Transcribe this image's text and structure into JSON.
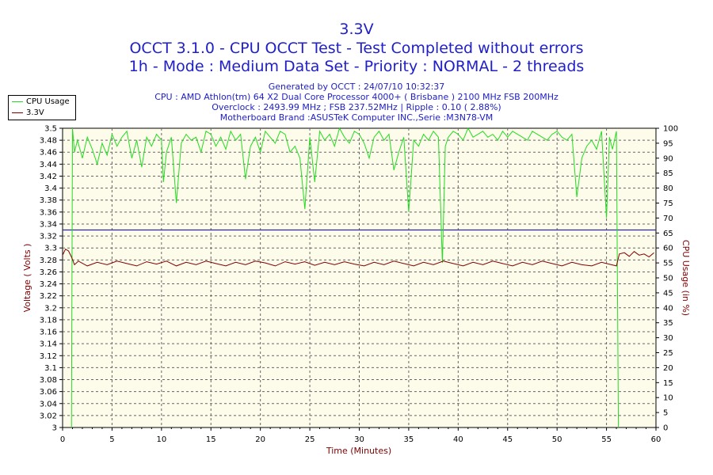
{
  "header": {
    "title": "3.3V",
    "subtitle1": "OCCT 3.1.0 - CPU OCCT Test - Test Completed without errors",
    "subtitle2": "1h - Mode : Medium Data Set - Priority : NORMAL - 2 threads",
    "info": [
      "Generated by OCCT : 24/07/10 10:32:37",
      "CPU : AMD Athlon(tm) 64 X2 Dual Core Processor 4000+ ( Brisbane ) 2100 MHz FSB 200MHz",
      "Overclock : 2493.99 MHz ; FSB 237.52MHz | Ripple : 0.10 ( 2.88%)",
      "Motherboard Brand :ASUSTeK Computer INC.,Serie :M3N78-VM"
    ]
  },
  "colors": {
    "cpu": "#22dd22",
    "voltage": "#800000",
    "reference": "#2a2aa0",
    "plot_bg": "#fdfbe9",
    "title": "#2020c8"
  },
  "chart_data": {
    "type": "line",
    "xlabel": "Time (Minutes)",
    "ylabel_left": "Voltage ( Volts )",
    "ylabel_right": "CPU Usage (in %)",
    "xlim": [
      0,
      60
    ],
    "ylim_left": [
      3.0,
      3.5
    ],
    "ylim_right": [
      0,
      100
    ],
    "x_ticks": [
      "0",
      "5",
      "10",
      "15",
      "20",
      "25",
      "30",
      "35",
      "40",
      "45",
      "50",
      "55",
      "60"
    ],
    "y_left_ticks": [
      "3",
      "3.02",
      "3.04",
      "3.06",
      "3.08",
      "3.1",
      "3.12",
      "3.14",
      "3.16",
      "3.18",
      "3.2",
      "3.22",
      "3.24",
      "3.26",
      "3.28",
      "3.3",
      "3.32",
      "3.34",
      "3.36",
      "3.38",
      "3.4",
      "3.42",
      "3.44",
      "3.46",
      "3.48",
      "3.5"
    ],
    "y_right_ticks": [
      "0",
      "5",
      "10",
      "15",
      "20",
      "25",
      "30",
      "35",
      "40",
      "45",
      "50",
      "55",
      "60",
      "65",
      "70",
      "75",
      "80",
      "85",
      "90",
      "95",
      "100"
    ],
    "grid": true,
    "legend_position": "top-left",
    "reference_line": {
      "axis": "left",
      "value": 3.33
    },
    "series": [
      {
        "name": "CPU Usage",
        "axis": "right",
        "x": [
          0.9,
          1.0,
          1.2,
          1.5,
          2.0,
          2.5,
          3.0,
          3.5,
          4.0,
          4.5,
          5.0,
          5.5,
          6.0,
          6.5,
          7.0,
          7.5,
          8.0,
          8.5,
          9.0,
          9.5,
          10.0,
          10.2,
          10.5,
          11.0,
          11.5,
          12.0,
          12.5,
          13.0,
          13.5,
          14.0,
          14.5,
          15.0,
          15.5,
          16.0,
          16.5,
          17.0,
          17.5,
          18.0,
          18.5,
          19.0,
          19.5,
          20.0,
          20.5,
          21.0,
          21.5,
          22.0,
          22.5,
          23.0,
          23.5,
          24.0,
          24.5,
          25.0,
          25.5,
          26.0,
          26.5,
          27.0,
          27.5,
          28.0,
          28.5,
          29.0,
          29.5,
          30.0,
          30.5,
          31.0,
          31.5,
          32.0,
          32.5,
          33.0,
          33.5,
          34.0,
          34.5,
          35.0,
          35.5,
          36.0,
          36.5,
          37.0,
          37.5,
          38.0,
          38.4,
          38.7,
          39.0,
          39.5,
          40.0,
          40.5,
          41.0,
          41.5,
          42.0,
          42.5,
          43.0,
          43.5,
          44.0,
          44.5,
          45.0,
          45.5,
          46.0,
          46.5,
          47.0,
          47.5,
          48.0,
          48.5,
          49.0,
          49.5,
          50.0,
          50.5,
          51.0,
          51.5,
          52.0,
          52.5,
          53.0,
          53.5,
          54.0,
          54.5,
          55.0,
          55.3,
          55.6,
          56.0,
          56.2
        ],
        "y": [
          0,
          100,
          92,
          96,
          90,
          97,
          93,
          88,
          95,
          91,
          98,
          94,
          97,
          99,
          90,
          96,
          87,
          97,
          94,
          98,
          96,
          82,
          92,
          97,
          75,
          95,
          98,
          96,
          97,
          92,
          99,
          98,
          94,
          97,
          93,
          99,
          96,
          98,
          83,
          94,
          97,
          92,
          99,
          97,
          95,
          99,
          98,
          92,
          94,
          90,
          73,
          97,
          82,
          99,
          96,
          98,
          94,
          100,
          97,
          95,
          99,
          98,
          95,
          90,
          97,
          99,
          96,
          98,
          86,
          92,
          97,
          72,
          96,
          94,
          98,
          96,
          99,
          97,
          55,
          94,
          97,
          99,
          98,
          96,
          100,
          97,
          98,
          99,
          97,
          98,
          96,
          99,
          97,
          99,
          98,
          97,
          96,
          99,
          98,
          97,
          96,
          98,
          99,
          97,
          96,
          98,
          77,
          90,
          94,
          96,
          93,
          99,
          70,
          97,
          93,
          99,
          0
        ]
      },
      {
        "name": "3.3V",
        "axis": "left",
        "x": [
          0.0,
          0.3,
          0.6,
          0.9,
          1.2,
          1.6,
          2.5,
          3.5,
          4.5,
          5.5,
          6.5,
          7.5,
          8.5,
          9.5,
          10.5,
          11.5,
          12.5,
          13.5,
          14.5,
          15.5,
          16.5,
          17.5,
          18.5,
          19.5,
          20.5,
          21.5,
          22.5,
          23.5,
          24.5,
          25.5,
          26.5,
          27.5,
          28.5,
          29.5,
          30.5,
          31.5,
          32.5,
          33.5,
          34.5,
          35.5,
          36.5,
          37.5,
          38.5,
          39.5,
          40.5,
          41.5,
          42.5,
          43.5,
          44.5,
          45.5,
          46.5,
          47.5,
          48.5,
          49.5,
          50.5,
          51.5,
          52.5,
          53.5,
          54.5,
          55.5,
          56.0,
          56.3,
          56.8,
          57.3,
          57.8,
          58.3,
          58.8,
          59.3,
          59.8
        ],
        "y": [
          3.288,
          3.298,
          3.295,
          3.285,
          3.272,
          3.278,
          3.27,
          3.276,
          3.272,
          3.278,
          3.274,
          3.27,
          3.277,
          3.273,
          3.278,
          3.27,
          3.276,
          3.272,
          3.278,
          3.274,
          3.27,
          3.276,
          3.272,
          3.278,
          3.275,
          3.27,
          3.277,
          3.273,
          3.277,
          3.271,
          3.276,
          3.272,
          3.277,
          3.273,
          3.27,
          3.276,
          3.272,
          3.278,
          3.274,
          3.27,
          3.276,
          3.272,
          3.278,
          3.274,
          3.27,
          3.276,
          3.272,
          3.278,
          3.274,
          3.27,
          3.276,
          3.272,
          3.278,
          3.274,
          3.27,
          3.276,
          3.272,
          3.27,
          3.276,
          3.272,
          3.27,
          3.29,
          3.292,
          3.286,
          3.294,
          3.288,
          3.29,
          3.285,
          3.292
        ]
      }
    ]
  }
}
